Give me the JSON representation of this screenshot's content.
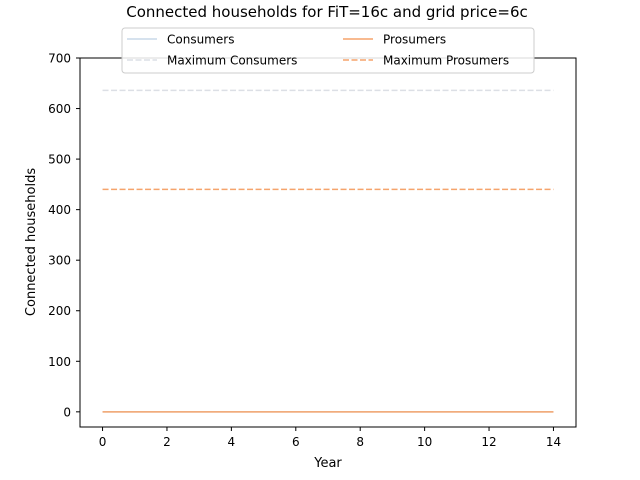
{
  "chart_data": {
    "type": "line",
    "title": "Connected households for FiT=16c and grid price=6c",
    "xlabel": "Year",
    "ylabel": "Connected households",
    "xlim": [
      -0.7,
      14.7
    ],
    "ylim": [
      -30,
      700
    ],
    "xticks": [
      0,
      2,
      4,
      6,
      8,
      10,
      12,
      14
    ],
    "yticks": [
      0,
      100,
      200,
      300,
      400,
      500,
      600,
      700
    ],
    "grid": false,
    "legend_position": "top-center",
    "legend_columns": 2,
    "x": [
      0,
      1,
      2,
      3,
      4,
      5,
      6,
      7,
      8,
      9,
      10,
      11,
      12,
      13,
      14
    ],
    "series": [
      {
        "name": "Consumers",
        "style": "solid",
        "color": "#c9d9e8",
        "values": [
          0,
          0,
          0,
          0,
          0,
          0,
          0,
          0,
          0,
          0,
          0,
          0,
          0,
          0,
          0
        ]
      },
      {
        "name": "Prosumers",
        "style": "solid",
        "color": "#f5a46c",
        "values": [
          0,
          0,
          0,
          0,
          0,
          0,
          0,
          0,
          0,
          0,
          0,
          0,
          0,
          0,
          0
        ]
      },
      {
        "name": "Maximum Consumers",
        "style": "dashed",
        "color": "#dcdfe5",
        "values": [
          636,
          636,
          636,
          636,
          636,
          636,
          636,
          636,
          636,
          636,
          636,
          636,
          636,
          636,
          636
        ]
      },
      {
        "name": "Maximum Prosumers",
        "style": "dashed",
        "color": "#f5a46c",
        "values": [
          440,
          440,
          440,
          440,
          440,
          440,
          440,
          440,
          440,
          440,
          440,
          440,
          440,
          440,
          440
        ]
      }
    ]
  }
}
